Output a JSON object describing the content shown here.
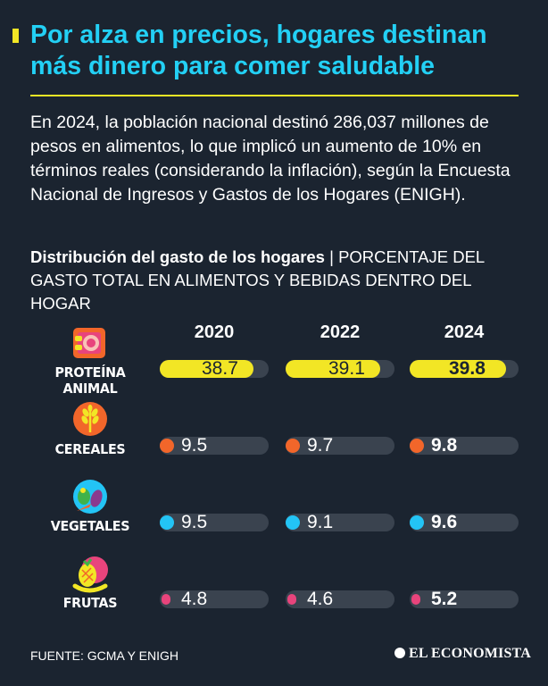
{
  "title": "Por alza en precios, hogares destinan más dinero para comer saludable",
  "intro": "En 2024, la población nacional destinó 286,037 millones de pesos en alimentos, lo que implicó un aumento de 10% en términos reales (considerando la inflación), según la Encuesta Nacional de Ingresos y Gastos de los Hogares (ENIGH).",
  "subtitle_strong": "Distribución del gasto de los hogares",
  "subtitle_sep": " | ",
  "subtitle_rest": "PORCENTAJE DEL GASTO TOTAL EN ALIMENTOS Y BEBIDAS DENTRO DEL HOGAR",
  "source": "FUENTE: GCMA Y ENIGH",
  "logo_text": "EL ECONOMISTA",
  "colors": {
    "background": "#1b2430",
    "title": "#23d0f5",
    "accent_yellow": "#f2e625",
    "track": "#3a434f",
    "cereales": "#f2662a",
    "vegetales": "#23c4f5",
    "frutas": "#e8447c"
  },
  "chart_data": {
    "type": "table",
    "title": "Distribución del gasto de los hogares",
    "unit": "PORCENTAJE DEL GASTO TOTAL EN ALIMENTOS Y BEBIDAS DENTRO DEL HOGAR",
    "years": [
      "2020",
      "2022",
      "2024"
    ],
    "ylim": [
      0,
      45
    ],
    "categories": [
      {
        "label": "PROTEÍNA ANIMAL",
        "icon": "meat-icon",
        "color": "#f2e625",
        "values": [
          38.7,
          39.1,
          39.8
        ],
        "labels": [
          "38.7",
          "39.1",
          "39.8"
        ]
      },
      {
        "label": "CEREALES",
        "icon": "wheat-icon",
        "color": "#f2662a",
        "values": [
          9.5,
          9.7,
          9.8
        ],
        "labels": [
          "9.5",
          "9.7",
          "9.8"
        ]
      },
      {
        "label": "VEGETALES",
        "icon": "vegetables-icon",
        "color": "#23c4f5",
        "values": [
          9.5,
          9.1,
          9.6
        ],
        "labels": [
          "9.5",
          "9.1",
          "9.6"
        ]
      },
      {
        "label": "FRUTAS",
        "icon": "fruits-icon",
        "color": "#e8447c",
        "values": [
          4.8,
          4.6,
          5.2
        ],
        "labels": [
          "4.8",
          "4.6",
          "5.2"
        ]
      }
    ]
  }
}
